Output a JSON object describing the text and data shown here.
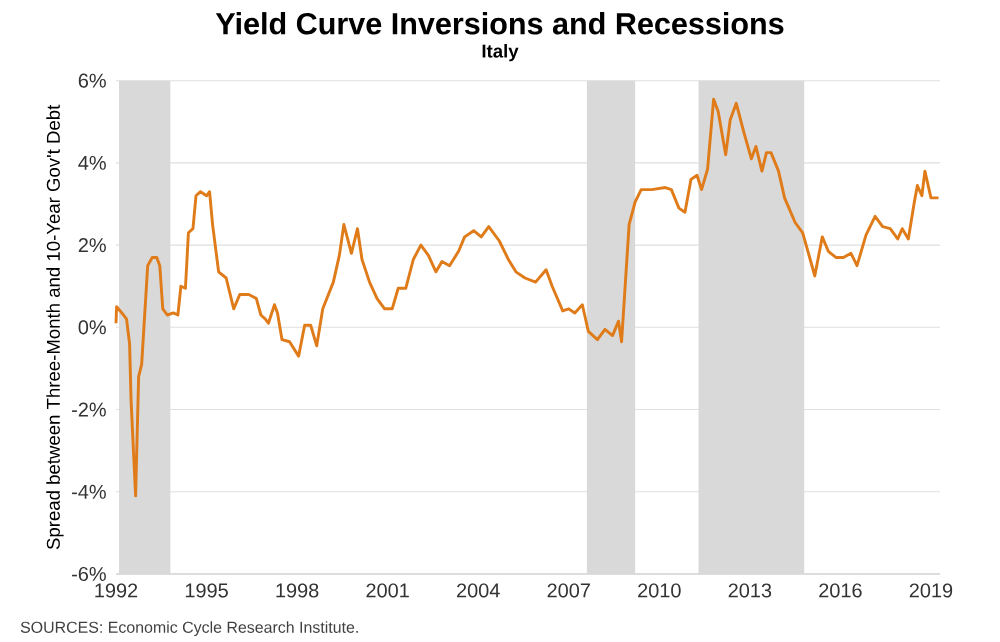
{
  "chart_data": {
    "type": "line",
    "title": "Yield Curve Inversions and Recessions",
    "subtitle": "Italy",
    "ylabel": "Spread between Three-Month and 10-Year Gov't Debt",
    "annotations": [
      "SOURCES: Economic Cycle Research Institute."
    ],
    "xlim": [
      1992,
      2019.3
    ],
    "xticks": [
      1992,
      1995,
      1998,
      2001,
      2004,
      2007,
      2010,
      2013,
      2016,
      2019
    ],
    "ylim": [
      -6,
      6
    ],
    "yticks": [
      {
        "value": -6,
        "label": "-6%"
      },
      {
        "value": -4,
        "label": "-4%"
      },
      {
        "value": -2,
        "label": "-2%"
      },
      {
        "value": 0,
        "label": "0%"
      },
      {
        "value": 2,
        "label": "2%"
      },
      {
        "value": 4,
        "label": "4%"
      },
      {
        "value": 6,
        "label": "6%"
      }
    ],
    "grid": "y",
    "bands": [
      {
        "axis": "x",
        "from": 1992.1,
        "to": 1993.8,
        "color": "#d9d9d9"
      },
      {
        "axis": "x",
        "from": 2007.6,
        "to": 2009.2,
        "color": "#d9d9d9"
      },
      {
        "axis": "x",
        "from": 2011.3,
        "to": 2014.8,
        "color": "#d9d9d9"
      }
    ],
    "series": [
      {
        "color": "#e07b1a",
        "x": [
          1992.0,
          1992.02,
          1992.25,
          1992.35,
          1992.45,
          1992.5,
          1992.65,
          1992.75,
          1992.85,
          1993.05,
          1993.2,
          1993.35,
          1993.45,
          1993.55,
          1993.7,
          1993.9,
          1994.05,
          1994.15,
          1994.3,
          1994.4,
          1994.55,
          1994.65,
          1994.8,
          1995.0,
          1995.1,
          1995.2,
          1995.4,
          1995.65,
          1995.9,
          1996.1,
          1996.4,
          1996.65,
          1996.8,
          1996.95,
          1997.05,
          1997.25,
          1997.35,
          1997.5,
          1997.75,
          1998.05,
          1998.25,
          1998.45,
          1998.65,
          1998.85,
          1999.2,
          1999.4,
          1999.55,
          1999.8,
          2000.0,
          2000.15,
          2000.4,
          2000.65,
          2000.9,
          2001.15,
          2001.35,
          2001.6,
          2001.85,
          2002.1,
          2002.35,
          2002.6,
          2002.8,
          2003.05,
          2003.35,
          2003.55,
          2003.85,
          2004.1,
          2004.35,
          2004.7,
          2005.0,
          2005.25,
          2005.55,
          2005.9,
          2006.25,
          2006.45,
          2006.8,
          2007.0,
          2007.2,
          2007.45,
          2007.65,
          2007.95,
          2008.2,
          2008.45,
          2008.65,
          2008.75,
          2009.0,
          2009.2,
          2009.4,
          2009.75,
          2010.2,
          2010.4,
          2010.65,
          2010.85,
          2011.05,
          2011.25,
          2011.4,
          2011.6,
          2011.8,
          2011.95,
          2012.2,
          2012.35,
          2012.55,
          2012.8,
          2013.05,
          2013.2,
          2013.4,
          2013.55,
          2013.7,
          2013.95,
          2014.15,
          2014.5,
          2014.75,
          2015.0,
          2015.15,
          2015.4,
          2015.6,
          2015.85,
          2016.1,
          2016.35,
          2016.55,
          2016.85,
          2017.15,
          2017.4,
          2017.65,
          2017.9,
          2018.05,
          2018.25,
          2018.45,
          2018.55,
          2018.7,
          2018.8,
          2019.0,
          2019.25
        ],
        "values": [
          0.1,
          0.5,
          0.3,
          0.2,
          -0.4,
          -1.8,
          -4.1,
          -1.2,
          -0.9,
          1.5,
          1.7,
          1.7,
          1.5,
          0.45,
          0.3,
          0.35,
          0.3,
          1.0,
          0.95,
          2.3,
          2.4,
          3.2,
          3.3,
          3.2,
          3.3,
          2.5,
          1.35,
          1.2,
          0.45,
          0.8,
          0.8,
          0.7,
          0.3,
          0.2,
          0.1,
          0.55,
          0.35,
          -0.3,
          -0.35,
          -0.7,
          0.05,
          0.05,
          -0.45,
          0.45,
          1.1,
          1.75,
          2.5,
          1.8,
          2.4,
          1.65,
          1.1,
          0.7,
          0.45,
          0.45,
          0.95,
          0.95,
          1.65,
          2.0,
          1.75,
          1.35,
          1.6,
          1.5,
          1.85,
          2.2,
          2.35,
          2.2,
          2.45,
          2.1,
          1.65,
          1.35,
          1.2,
          1.1,
          1.4,
          1.0,
          0.4,
          0.45,
          0.35,
          0.55,
          -0.1,
          -0.3,
          -0.05,
          -0.2,
          0.15,
          -0.35,
          2.5,
          3.05,
          3.35,
          3.35,
          3.4,
          3.35,
          2.9,
          2.8,
          3.6,
          3.7,
          3.35,
          3.85,
          5.55,
          5.25,
          4.2,
          5.05,
          5.45,
          4.75,
          4.1,
          4.4,
          3.8,
          4.25,
          4.25,
          3.8,
          3.15,
          2.55,
          2.3,
          1.65,
          1.25,
          2.2,
          1.85,
          1.7,
          1.7,
          1.8,
          1.5,
          2.25,
          2.7,
          2.45,
          2.4,
          2.15,
          2.4,
          2.15,
          3.05,
          3.45,
          3.2,
          3.8,
          3.15,
          3.15
        ]
      }
    ]
  }
}
